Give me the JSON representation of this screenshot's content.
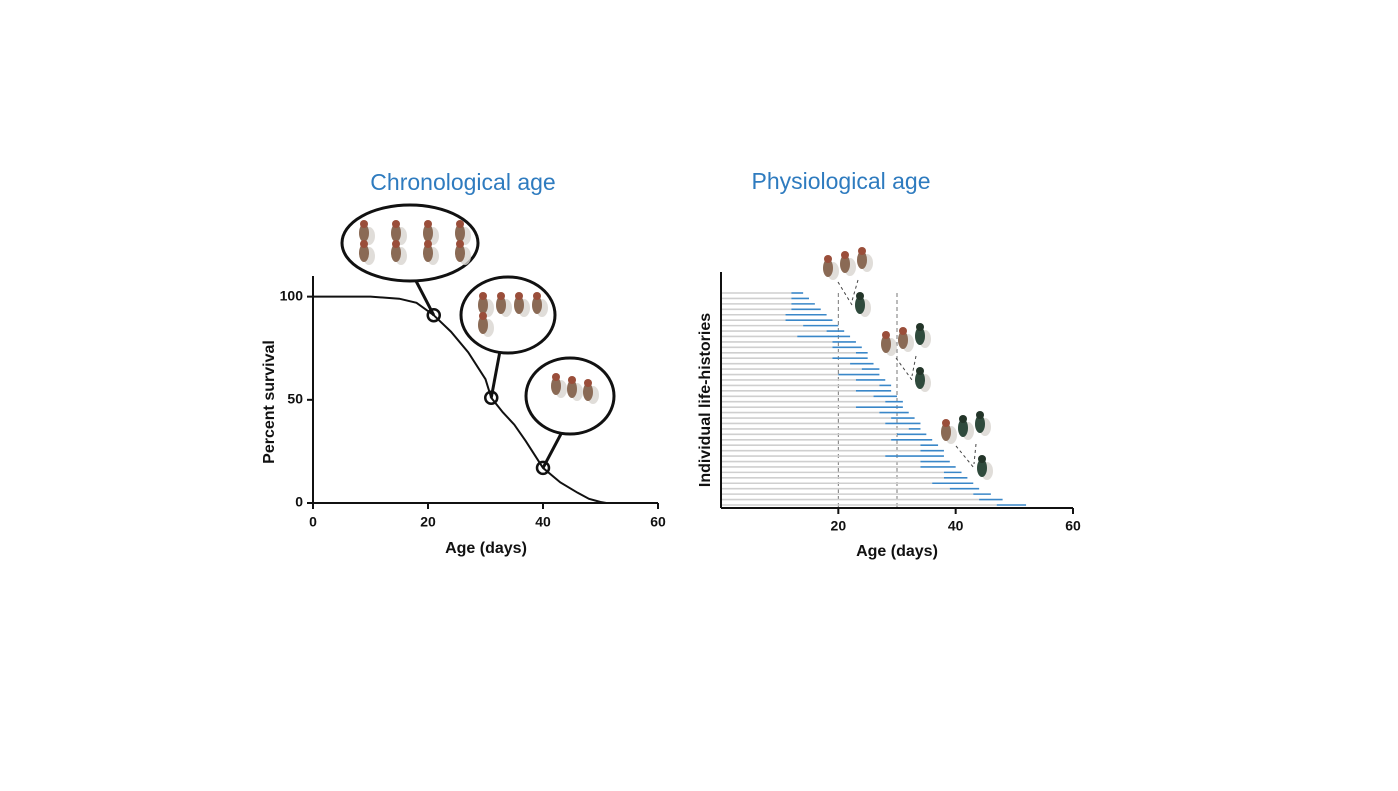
{
  "chart_data": [
    {
      "type": "line",
      "title": "Chronological age",
      "x_label": "Age (days)",
      "y_label": "Percent survival",
      "x": [
        0,
        10,
        15,
        18,
        21,
        24,
        27,
        30,
        31,
        33,
        35,
        37,
        40,
        43,
        46,
        48,
        50,
        51
      ],
      "values": [
        100,
        100,
        99,
        97,
        91,
        83,
        73,
        60,
        51,
        44,
        38,
        30,
        17,
        10,
        5,
        2,
        0.5,
        0
      ],
      "color": "#111111",
      "markers": {
        "x": [
          21,
          31,
          40
        ],
        "y": [
          91,
          51,
          17
        ]
      },
      "xlim": [
        0,
        60
      ],
      "xticks": [
        0,
        20,
        40,
        60
      ],
      "ylim": [
        0,
        110
      ],
      "yticks": [
        0,
        50,
        100
      ]
    },
    {
      "type": "lifelines",
      "title": "Physiological age",
      "x_label": "Age (days)",
      "y_label": "Individual life-histories",
      "segments": [
        {
          "color": "#cfcfcf",
          "values": [
            12,
            12,
            12,
            12,
            11,
            11,
            14,
            18,
            13,
            19,
            19,
            23,
            19,
            22,
            24,
            20,
            23,
            27,
            23,
            26,
            28,
            23,
            27,
            29,
            28,
            32,
            30,
            29,
            34,
            34,
            28,
            34,
            34,
            38,
            38,
            36,
            39,
            43,
            44,
            47
          ]
        },
        {
          "color": "#3a87c8",
          "values": [
            2,
            3,
            4,
            5,
            7,
            8,
            6,
            3,
            9,
            4,
            5,
            2,
            6,
            4,
            3,
            7,
            5,
            2,
            6,
            4,
            3,
            8,
            5,
            4,
            6,
            2,
            5,
            7,
            3,
            4,
            10,
            5,
            6,
            3,
            4,
            7,
            5,
            3,
            4,
            5
          ]
        }
      ],
      "reference_lines": [
        20,
        30
      ],
      "xlim": [
        0,
        60
      ],
      "xticks": [
        20,
        40,
        60
      ]
    }
  ]
}
